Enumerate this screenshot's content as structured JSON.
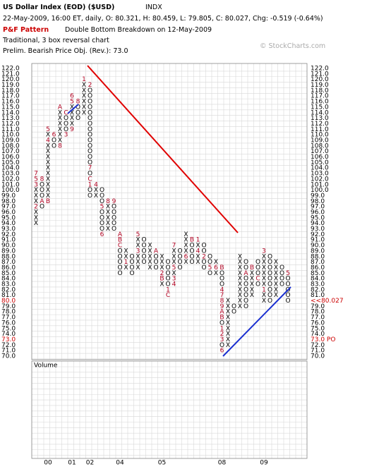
{
  "chart_data": {
    "type": "point-and-figure",
    "title": "US Dollar Index (EOD) ($USD)",
    "exchange": "INDX",
    "quote": "22-May-2009, 16:00 ET, daily, O: 80.321, H: 80.459, L: 79.805, C: 80.027, Chg: -0.519 (-0.64%)",
    "pattern_label": "P&F Pattern",
    "pattern": "Double Bottom Breakdown on 12-May-2009",
    "method": "Traditional, 3 box reversal chart",
    "objective": "Prelim. Bearish Price Obj. (Rev.): 73.0",
    "watermark": "© StockCharts.com",
    "volume_label": "Volume",
    "x_color": "#000000",
    "marker_color": "#b00020",
    "highlight_color": "#cc0000",
    "grid": true,
    "ylim": [
      70,
      122
    ],
    "yticks": [
      {
        "value": 70,
        "label": "70.0"
      },
      {
        "value": 71,
        "label": "71.0"
      },
      {
        "value": 72,
        "label": "72.0"
      },
      {
        "value": 73,
        "label": "73.0"
      },
      {
        "value": 74,
        "label": "74.0"
      },
      {
        "value": 75,
        "label": "75.0"
      },
      {
        "value": 76,
        "label": "76.0"
      },
      {
        "value": 77,
        "label": "77.0"
      },
      {
        "value": 78,
        "label": "78.0"
      },
      {
        "value": 79,
        "label": "79.0"
      },
      {
        "value": 80,
        "label": "80.0"
      },
      {
        "value": 81,
        "label": "81.0"
      },
      {
        "value": 82,
        "label": "82.0"
      },
      {
        "value": 83,
        "label": "83.0"
      },
      {
        "value": 84,
        "label": "84.0"
      },
      {
        "value": 85,
        "label": "85.0"
      },
      {
        "value": 86,
        "label": "86.0"
      },
      {
        "value": 87,
        "label": "87.0"
      },
      {
        "value": 88,
        "label": "88.0"
      },
      {
        "value": 89,
        "label": "89.0"
      },
      {
        "value": 90,
        "label": "90.0"
      },
      {
        "value": 91,
        "label": "91.0"
      },
      {
        "value": 92,
        "label": "92.0"
      },
      {
        "value": 93,
        "label": "93.0"
      },
      {
        "value": 94,
        "label": "94.0"
      },
      {
        "value": 95,
        "label": "95.0"
      },
      {
        "value": 96,
        "label": "96.0"
      },
      {
        "value": 97,
        "label": "97.0"
      },
      {
        "value": 98,
        "label": "98.0"
      },
      {
        "value": 99,
        "label": "99.0"
      },
      {
        "value": 100,
        "label": "100.0"
      },
      {
        "value": 101,
        "label": "101.0"
      },
      {
        "value": 102,
        "label": "102.0"
      },
      {
        "value": 103,
        "label": "103.0"
      },
      {
        "value": 104,
        "label": "104.0"
      },
      {
        "value": 105,
        "label": "105.0"
      },
      {
        "value": 106,
        "label": "106.0"
      },
      {
        "value": 107,
        "label": "107.0"
      },
      {
        "value": 108,
        "label": "108.0"
      },
      {
        "value": 109,
        "label": "109.0"
      },
      {
        "value": 110,
        "label": "110.0"
      },
      {
        "value": 111,
        "label": "111.0"
      },
      {
        "value": 112,
        "label": "112.0"
      },
      {
        "value": 113,
        "label": "113.0"
      },
      {
        "value": 114,
        "label": "114.0"
      },
      {
        "value": 115,
        "label": "115.0"
      },
      {
        "value": 116,
        "label": "116.0"
      },
      {
        "value": 117,
        "label": "117.0"
      },
      {
        "value": 118,
        "label": "118.0"
      },
      {
        "value": 119,
        "label": "119.0"
      },
      {
        "value": 120,
        "label": "120.0"
      },
      {
        "value": 121,
        "label": "121.0"
      },
      {
        "value": 122,
        "label": "122.0"
      }
    ],
    "highlight_ticks": [
      80,
      73
    ],
    "right_labels": [
      {
        "value": 80.027,
        "label": "<<80.027"
      },
      {
        "value": 73,
        "label": "73.0 PO"
      }
    ],
    "years": [
      {
        "label": "00",
        "column": 2
      },
      {
        "label": "01",
        "column": 6
      },
      {
        "label": "02",
        "column": 9
      },
      {
        "label": "04",
        "column": 14
      },
      {
        "label": "05",
        "column": 21
      },
      {
        "label": "08",
        "column": 31
      },
      {
        "label": "09",
        "column": 38
      }
    ],
    "columns": [
      {
        "type": "X",
        "low": 94,
        "high": 103,
        "marks": {
          "97": "2",
          "101": "3",
          "102": "5",
          "103": "7"
        }
      },
      {
        "type": "O",
        "low": 97,
        "high": 102,
        "marks": {
          "102": "8",
          "98": "A"
        }
      },
      {
        "type": "X",
        "low": 98,
        "high": 111,
        "marks": {
          "98": "B",
          "109": "4",
          "111": "5"
        }
      },
      {
        "type": "O",
        "low": 108,
        "high": 110,
        "marks": {
          "110": "6"
        }
      },
      {
        "type": "X",
        "low": 108,
        "high": 115,
        "marks": {
          "108": "8",
          "115": "A"
        }
      },
      {
        "type": "O",
        "low": 110,
        "high": 114,
        "marks": {
          "114": "C",
          "110": "3"
        }
      },
      {
        "type": "X",
        "low": 111,
        "high": 117,
        "marks": {
          "111": "9",
          "116": "5",
          "117": "6"
        }
      },
      {
        "type": "O",
        "low": 113,
        "high": 116,
        "marks": {
          "116": "8"
        }
      },
      {
        "type": "X",
        "low": 114,
        "high": 120,
        "marks": {
          "120": "1"
        }
      },
      {
        "type": "O",
        "low": 99,
        "high": 119,
        "marks": {
          "119": "2",
          "104": "7",
          "102": "C",
          "101": "1"
        }
      },
      {
        "type": "X",
        "low": 99,
        "high": 101,
        "marks": {
          "101": "4"
        }
      },
      {
        "type": "O",
        "low": 92,
        "high": 100,
        "marks": {
          "97": "5",
          "92": "6"
        }
      },
      {
        "type": "X",
        "low": 93,
        "high": 98,
        "marks": {
          "98": "8"
        }
      },
      {
        "type": "O",
        "low": 93,
        "high": 98,
        "marks": {
          "98": "9"
        }
      },
      {
        "type": "O",
        "low": 85,
        "high": 92,
        "marks": {
          "92": "A",
          "91": "B",
          "90": "C"
        }
      },
      {
        "type": "X",
        "low": 86,
        "high": 89,
        "marks": {
          "87": "1"
        }
      },
      {
        "type": "O",
        "low": 85,
        "high": 88,
        "marks": {}
      },
      {
        "type": "X",
        "low": 86,
        "high": 92,
        "marks": {
          "92": "5",
          "89": "3"
        }
      },
      {
        "type": "O",
        "low": 87,
        "high": 91,
        "marks": {}
      },
      {
        "type": "X",
        "low": 86,
        "high": 90,
        "marks": {}
      },
      {
        "type": "O",
        "low": 86,
        "high": 89,
        "marks": {
          "89": "A"
        }
      },
      {
        "type": "X",
        "low": 83,
        "high": 88,
        "marks": {
          "84": "B",
          "85": "2"
        }
      },
      {
        "type": "O",
        "low": 81,
        "high": 87,
        "marks": {
          "82": "1",
          "81": "C"
        }
      },
      {
        "type": "X",
        "low": 83,
        "high": 90,
        "marks": {
          "83": "4",
          "84": "3",
          "86": "5",
          "90": "7"
        }
      },
      {
        "type": "O",
        "low": 86,
        "high": 89,
        "marks": {}
      },
      {
        "type": "X",
        "low": 87,
        "high": 92,
        "marks": {
          "88": "6"
        }
      },
      {
        "type": "O",
        "low": 87,
        "high": 91,
        "marks": {
          "91": "B"
        }
      },
      {
        "type": "X",
        "low": 87,
        "high": 91,
        "marks": {
          "91": "1",
          "89": "4"
        }
      },
      {
        "type": "O",
        "low": 86,
        "high": 90,
        "marks": {
          "88": "2"
        }
      },
      {
        "type": "O",
        "low": 85,
        "high": 88,
        "marks": {
          "86": "5"
        }
      },
      {
        "type": "X",
        "low": 85,
        "high": 87,
        "marks": {
          "86": "6"
        }
      },
      {
        "type": "O",
        "low": 71,
        "high": 86,
        "marks": {
          "86": "B",
          "82": "4",
          "81": "7",
          "80": "8",
          "79": "9",
          "78": "A",
          "77": "B",
          "75": "1",
          "74": "2",
          "73": "3",
          "71": "6"
        }
      },
      {
        "type": "X",
        "low": 72,
        "high": 80,
        "marks": {}
      },
      {
        "type": "O",
        "low": 78,
        "high": 79,
        "marks": {}
      },
      {
        "type": "X",
        "low": 79,
        "high": 88,
        "marks": {}
      },
      {
        "type": "O",
        "low": 79,
        "high": 87,
        "marks": {
          "85": "A"
        }
      },
      {
        "type": "X",
        "low": 81,
        "high": 86,
        "marks": {
          "86": "B"
        }
      },
      {
        "type": "O",
        "low": 83,
        "high": 87,
        "marks": {
          "84": "C"
        }
      },
      {
        "type": "X",
        "low": 80,
        "high": 89,
        "marks": {
          "89": "3",
          "82": "1"
        }
      },
      {
        "type": "O",
        "low": 80,
        "high": 88,
        "marks": {}
      },
      {
        "type": "X",
        "low": 81,
        "high": 87,
        "marks": {}
      },
      {
        "type": "O",
        "low": 83,
        "high": 86,
        "marks": {}
      },
      {
        "type": "O",
        "low": 80,
        "high": 85,
        "marks": {
          "85": "5"
        }
      }
    ]
  }
}
